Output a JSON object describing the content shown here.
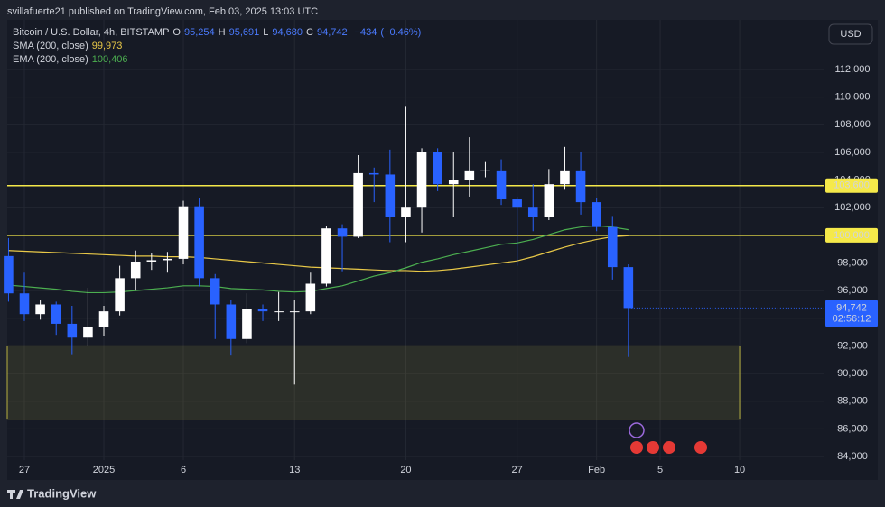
{
  "header": {
    "published": "svillafuerte21 published on TradingView.com, Feb 03, 2025 13:03 UTC"
  },
  "footer": {
    "brand": "TradingView"
  },
  "chart_data": {
    "type": "candlestick",
    "currency": "USD",
    "symbol": "Bitcoin / U.S. Dollar, 4h, BITSTAMP",
    "legend_ohlc": [
      {
        "name": "O",
        "value": 95254,
        "label": "95,254"
      },
      {
        "name": "H",
        "value": 95691,
        "label": "95,691"
      },
      {
        "name": "L",
        "value": 94680,
        "label": "94,680"
      },
      {
        "name": "C",
        "value": 94742,
        "label": "94,742"
      }
    ],
    "change": {
      "value": -434,
      "label": "−434"
    },
    "change_pct": {
      "value": -0.46,
      "label": "(−0.46%)"
    },
    "up_color": "#ffffff",
    "down_color": "#2962ff",
    "ohlc": [
      [
        98500,
        99800,
        95200,
        95800
      ],
      [
        95800,
        97300,
        93800,
        94300
      ],
      [
        94300,
        95300,
        93900,
        95000
      ],
      [
        95000,
        95200,
        92800,
        93600
      ],
      [
        93600,
        94900,
        91400,
        92600
      ],
      [
        92600,
        96200,
        92000,
        93400
      ],
      [
        93400,
        94900,
        92700,
        94500
      ],
      [
        94500,
        97800,
        94200,
        96900
      ],
      [
        96900,
        98900,
        96000,
        98100
      ],
      [
        98100,
        98700,
        97500,
        98200
      ],
      [
        98200,
        98800,
        97300,
        98300
      ],
      [
        98300,
        102500,
        97900,
        102100
      ],
      [
        102100,
        102700,
        96300,
        96900
      ],
      [
        96900,
        97200,
        92500,
        95000
      ],
      [
        95000,
        95300,
        91300,
        92500
      ],
      [
        92500,
        95800,
        92200,
        94700
      ],
      [
        94700,
        95000,
        93800,
        94500
      ],
      [
        94500,
        95900,
        93800,
        94500
      ],
      [
        94500,
        95300,
        89200,
        94500
      ],
      [
        94500,
        97300,
        94300,
        96500
      ],
      [
        96500,
        100700,
        96300,
        100500
      ],
      [
        100500,
        100800,
        97400,
        99900
      ],
      [
        99900,
        105800,
        99800,
        104500
      ],
      [
        104500,
        104900,
        102400,
        104400
      ],
      [
        104400,
        106200,
        99500,
        101300
      ],
      [
        101300,
        109300,
        99500,
        102000
      ],
      [
        102000,
        106300,
        100200,
        106000
      ],
      [
        106000,
        106300,
        103200,
        103700
      ],
      [
        103700,
        106000,
        101300,
        104000
      ],
      [
        104000,
        107100,
        102800,
        104700
      ],
      [
        104700,
        105300,
        104200,
        104700
      ],
      [
        104700,
        105500,
        102200,
        102600
      ],
      [
        102600,
        102800,
        97800,
        102000
      ],
      [
        102000,
        103700,
        100300,
        101300
      ],
      [
        101300,
        104800,
        101100,
        103700
      ],
      [
        103700,
        106400,
        103300,
        104700
      ],
      [
        104700,
        106000,
        101500,
        102400
      ],
      [
        102400,
        102700,
        100300,
        100600
      ],
      [
        100600,
        101400,
        96800,
        97700
      ],
      [
        97700,
        97900,
        91200,
        94742
      ]
    ],
    "series": [
      {
        "name": "SMA (200, close)",
        "color": "#e9c948",
        "last": {
          "value": 99973,
          "label": "99,973"
        },
        "values": [
          98900,
          98850,
          98800,
          98750,
          98700,
          98650,
          98600,
          98550,
          98500,
          98500,
          98450,
          98450,
          98400,
          98300,
          98200,
          98100,
          98000,
          97900,
          97800,
          97700,
          97650,
          97600,
          97550,
          97500,
          97450,
          97450,
          97400,
          97450,
          97550,
          97700,
          97850,
          98000,
          98150,
          98450,
          98800,
          99150,
          99450,
          99700,
          99900,
          99973
        ]
      },
      {
        "name": "EMA (200, close)",
        "color": "#4caf50",
        "last": {
          "value": 100406,
          "label": "100,406"
        },
        "values": [
          96400,
          96300,
          96200,
          96100,
          95950,
          95850,
          95850,
          95900,
          96000,
          96100,
          96200,
          96350,
          96350,
          96300,
          96150,
          96100,
          96050,
          95950,
          95900,
          95950,
          96150,
          96350,
          96700,
          97050,
          97300,
          97650,
          98050,
          98300,
          98600,
          98850,
          99100,
          99350,
          99450,
          99700,
          100050,
          100400,
          100600,
          100700,
          100600,
          100406
        ]
      }
    ],
    "levels": [
      {
        "value": 103600,
        "label": "103,600"
      },
      {
        "value": 100000,
        "label": "100,000"
      }
    ],
    "level_color": "#f5e94a",
    "zone": {
      "from": 86700,
      "to": 92000,
      "x_end": 46
    },
    "last_price": {
      "value": 94742,
      "label": "94,742"
    },
    "countdown": "02:56:12",
    "xlim": [
      -0.08,
      51.28
    ],
    "xticks": [
      {
        "value": 1,
        "label": "27"
      },
      {
        "value": 6,
        "label": "2025"
      },
      {
        "value": 11,
        "label": "6"
      },
      {
        "value": 18,
        "label": "13"
      },
      {
        "value": 25,
        "label": "20"
      },
      {
        "value": 32,
        "label": "27"
      },
      {
        "value": 37,
        "label": "Feb"
      },
      {
        "value": 41,
        "label": "5"
      },
      {
        "value": 46,
        "label": "10"
      }
    ],
    "ylim": [
      83740,
      115590
    ],
    "yticks": [
      {
        "value": 84000,
        "label": "84,000"
      },
      {
        "value": 86000,
        "label": "86,000"
      },
      {
        "value": 88000,
        "label": "88,000"
      },
      {
        "value": 90000,
        "label": "90,000"
      },
      {
        "value": 92000,
        "label": "92,000"
      },
      {
        "value": 94000,
        "label": "94,000"
      },
      {
        "value": 96000,
        "label": "96,000"
      },
      {
        "value": 98000,
        "label": "98,000"
      },
      {
        "value": 100000,
        "label": "100,000"
      },
      {
        "value": 102000,
        "label": "102,000"
      },
      {
        "value": 104000,
        "label": "104,000"
      },
      {
        "value": 106000,
        "label": "106,000"
      },
      {
        "value": 108000,
        "label": "108,000"
      },
      {
        "value": 110000,
        "label": "110,000"
      },
      {
        "value": 112000,
        "label": "112,000"
      }
    ],
    "grid": true
  }
}
